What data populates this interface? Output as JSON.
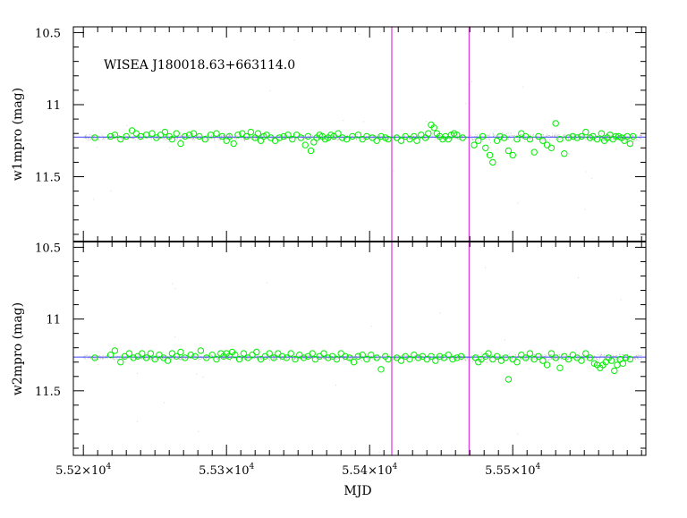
{
  "chart_data": {
    "type": "scatter",
    "annotation": "WISEA J180018.63+663114.0",
    "xlabel": "MJD",
    "x_ticks": [
      {
        "value": 55200,
        "label": "5.52×10"
      },
      {
        "value": 55300,
        "label": "5.53×10"
      },
      {
        "value": 55400,
        "label": "5.54×10"
      },
      {
        "value": 55500,
        "label": "5.55×10"
      }
    ],
    "x_tick_exponent": "4",
    "xlim": [
      55193,
      55593
    ],
    "vertical_lines_x": [
      55415.5,
      55469.5
    ],
    "colors": {
      "points": "#00ee00",
      "baseline": "#4444ff",
      "vlines": "#dd44dd",
      "dots": "#9a9a9a"
    },
    "panels": [
      {
        "ylabel": "w1mpro (mag)",
        "ylim": [
          11.95,
          10.46
        ],
        "y_ticks": [
          {
            "value": 10.5,
            "label": "10.5"
          },
          {
            "value": 11.0,
            "label": "11"
          },
          {
            "value": 11.5,
            "label": "11.5"
          }
        ],
        "baseline": 11.225,
        "points": [
          [
            55208,
            11.23
          ],
          [
            55219,
            11.22
          ],
          [
            55222,
            11.21
          ],
          [
            55226,
            11.24
          ],
          [
            55230,
            11.22
          ],
          [
            55234,
            11.18
          ],
          [
            55237,
            11.2
          ],
          [
            55240,
            11.22
          ],
          [
            55244,
            11.21
          ],
          [
            55248,
            11.2
          ],
          [
            55251,
            11.23
          ],
          [
            55254,
            11.21
          ],
          [
            55257,
            11.19
          ],
          [
            55260,
            11.22
          ],
          [
            55262,
            11.24
          ],
          [
            55265,
            11.2
          ],
          [
            55268,
            11.27
          ],
          [
            55271,
            11.22
          ],
          [
            55274,
            11.21
          ],
          [
            55277,
            11.2
          ],
          [
            55281,
            11.22
          ],
          [
            55285,
            11.24
          ],
          [
            55289,
            11.21
          ],
          [
            55293,
            11.2
          ],
          [
            55297,
            11.22
          ],
          [
            55300,
            11.25
          ],
          [
            55302,
            11.22
          ],
          [
            55305,
            11.27
          ],
          [
            55308,
            11.21
          ],
          [
            55311,
            11.2
          ],
          [
            55314,
            11.22
          ],
          [
            55317,
            11.19
          ],
          [
            55320,
            11.23
          ],
          [
            55322,
            11.2
          ],
          [
            55324,
            11.25
          ],
          [
            55326,
            11.22
          ],
          [
            55328,
            11.21
          ],
          [
            55331,
            11.23
          ],
          [
            55334,
            11.25
          ],
          [
            55337,
            11.23
          ],
          [
            55340,
            11.22
          ],
          [
            55343,
            11.21
          ],
          [
            55346,
            11.24
          ],
          [
            55349,
            11.21
          ],
          [
            55352,
            11.23
          ],
          [
            55355,
            11.28
          ],
          [
            55357,
            11.22
          ],
          [
            55359,
            11.32
          ],
          [
            55361,
            11.26
          ],
          [
            55363,
            11.23
          ],
          [
            55365,
            11.21
          ],
          [
            55367,
            11.22
          ],
          [
            55369,
            11.24
          ],
          [
            55371,
            11.23
          ],
          [
            55373,
            11.21
          ],
          [
            55375,
            11.22
          ],
          [
            55378,
            11.2
          ],
          [
            55381,
            11.23
          ],
          [
            55384,
            11.24
          ],
          [
            55388,
            11.22
          ],
          [
            55392,
            11.21
          ],
          [
            55395,
            11.24
          ],
          [
            55398,
            11.22
          ],
          [
            55402,
            11.23
          ],
          [
            55405,
            11.25
          ],
          [
            55408,
            11.22
          ],
          [
            55411,
            11.23
          ],
          [
            55413,
            11.24
          ],
          [
            55419,
            11.23
          ],
          [
            55422,
            11.25
          ],
          [
            55425,
            11.22
          ],
          [
            55428,
            11.24
          ],
          [
            55431,
            11.22
          ],
          [
            55433,
            11.25
          ],
          [
            55436,
            11.21
          ],
          [
            55439,
            11.23
          ],
          [
            55441,
            11.2
          ],
          [
            55443,
            11.14
          ],
          [
            55445,
            11.16
          ],
          [
            55447,
            11.2
          ],
          [
            55449,
            11.22
          ],
          [
            55451,
            11.24
          ],
          [
            55453,
            11.22
          ],
          [
            55455,
            11.24
          ],
          [
            55457,
            11.21
          ],
          [
            55459,
            11.2
          ],
          [
            55461,
            11.21
          ],
          [
            55465,
            11.23
          ],
          [
            55473,
            11.28
          ],
          [
            55476,
            11.25
          ],
          [
            55479,
            11.22
          ],
          [
            55481,
            11.3
          ],
          [
            55484,
            11.35
          ],
          [
            55486,
            11.4
          ],
          [
            55489,
            11.25
          ],
          [
            55491,
            11.22
          ],
          [
            55494,
            11.23
          ],
          [
            55497,
            11.32
          ],
          [
            55500,
            11.35
          ],
          [
            55503,
            11.24
          ],
          [
            55506,
            11.2
          ],
          [
            55509,
            11.22
          ],
          [
            55512,
            11.24
          ],
          [
            55515,
            11.33
          ],
          [
            55518,
            11.22
          ],
          [
            55521,
            11.25
          ],
          [
            55524,
            11.28
          ],
          [
            55527,
            11.3
          ],
          [
            55530,
            11.13
          ],
          [
            55533,
            11.24
          ],
          [
            55536,
            11.34
          ],
          [
            55539,
            11.23
          ],
          [
            55542,
            11.22
          ],
          [
            55545,
            11.23
          ],
          [
            55548,
            11.22
          ],
          [
            55551,
            11.19
          ],
          [
            55554,
            11.23
          ],
          [
            55556,
            11.22
          ],
          [
            55559,
            11.24
          ],
          [
            55562,
            11.2
          ],
          [
            55564,
            11.25
          ],
          [
            55566,
            11.23
          ],
          [
            55568,
            11.21
          ],
          [
            55570,
            11.24
          ],
          [
            55572,
            11.22
          ],
          [
            55574,
            11.22
          ],
          [
            55576,
            11.23
          ],
          [
            55578,
            11.25
          ],
          [
            55580,
            11.22
          ],
          [
            55582,
            11.27
          ],
          [
            55584,
            11.22
          ]
        ]
      },
      {
        "ylabel": "w2mpro (mag)",
        "ylim": [
          11.95,
          10.46
        ],
        "y_ticks": [
          {
            "value": 10.5,
            "label": "10.5"
          },
          {
            "value": 11.0,
            "label": "11"
          },
          {
            "value": 11.5,
            "label": "11.5"
          }
        ],
        "baseline": 11.265,
        "points": [
          [
            55208,
            11.27
          ],
          [
            55219,
            11.25
          ],
          [
            55222,
            11.22
          ],
          [
            55226,
            11.3
          ],
          [
            55229,
            11.26
          ],
          [
            55232,
            11.24
          ],
          [
            55235,
            11.27
          ],
          [
            55238,
            11.26
          ],
          [
            55241,
            11.24
          ],
          [
            55244,
            11.27
          ],
          [
            55247,
            11.24
          ],
          [
            55250,
            11.28
          ],
          [
            55253,
            11.25
          ],
          [
            55256,
            11.27
          ],
          [
            55259,
            11.29
          ],
          [
            55262,
            11.24
          ],
          [
            55265,
            11.26
          ],
          [
            55268,
            11.23
          ],
          [
            55271,
            11.27
          ],
          [
            55275,
            11.25
          ],
          [
            55278,
            11.26
          ],
          [
            55282,
            11.22
          ],
          [
            55286,
            11.27
          ],
          [
            55290,
            11.25
          ],
          [
            55293,
            11.28
          ],
          [
            55296,
            11.24
          ],
          [
            55298,
            11.26
          ],
          [
            55300,
            11.24
          ],
          [
            55302,
            11.26
          ],
          [
            55304,
            11.23
          ],
          [
            55306,
            11.25
          ],
          [
            55309,
            11.28
          ],
          [
            55312,
            11.24
          ],
          [
            55315,
            11.27
          ],
          [
            55318,
            11.25
          ],
          [
            55321,
            11.23
          ],
          [
            55324,
            11.28
          ],
          [
            55327,
            11.26
          ],
          [
            55330,
            11.24
          ],
          [
            55333,
            11.27
          ],
          [
            55336,
            11.24
          ],
          [
            55339,
            11.26
          ],
          [
            55342,
            11.27
          ],
          [
            55345,
            11.24
          ],
          [
            55348,
            11.28
          ],
          [
            55351,
            11.25
          ],
          [
            55354,
            11.27
          ],
          [
            55357,
            11.26
          ],
          [
            55360,
            11.24
          ],
          [
            55362,
            11.28
          ],
          [
            55365,
            11.26
          ],
          [
            55368,
            11.24
          ],
          [
            55371,
            11.27
          ],
          [
            55374,
            11.26
          ],
          [
            55377,
            11.28
          ],
          [
            55380,
            11.24
          ],
          [
            55383,
            11.26
          ],
          [
            55386,
            11.27
          ],
          [
            55389,
            11.3
          ],
          [
            55392,
            11.26
          ],
          [
            55395,
            11.25
          ],
          [
            55398,
            11.28
          ],
          [
            55401,
            11.25
          ],
          [
            55405,
            11.27
          ],
          [
            55408,
            11.35
          ],
          [
            55411,
            11.26
          ],
          [
            55413,
            11.28
          ],
          [
            55419,
            11.27
          ],
          [
            55422,
            11.29
          ],
          [
            55425,
            11.26
          ],
          [
            55428,
            11.28
          ],
          [
            55431,
            11.25
          ],
          [
            55434,
            11.27
          ],
          [
            55437,
            11.26
          ],
          [
            55440,
            11.28
          ],
          [
            55443,
            11.26
          ],
          [
            55446,
            11.29
          ],
          [
            55449,
            11.26
          ],
          [
            55452,
            11.27
          ],
          [
            55455,
            11.25
          ],
          [
            55458,
            11.28
          ],
          [
            55461,
            11.27
          ],
          [
            55464,
            11.26
          ],
          [
            55474,
            11.27
          ],
          [
            55476,
            11.3
          ],
          [
            55478,
            11.28
          ],
          [
            55481,
            11.26
          ],
          [
            55483,
            11.24
          ],
          [
            55486,
            11.28
          ],
          [
            55489,
            11.26
          ],
          [
            55492,
            11.29
          ],
          [
            55495,
            11.27
          ],
          [
            55497,
            11.42
          ],
          [
            55500,
            11.28
          ],
          [
            55503,
            11.3
          ],
          [
            55506,
            11.25
          ],
          [
            55509,
            11.27
          ],
          [
            55512,
            11.24
          ],
          [
            55515,
            11.28
          ],
          [
            55518,
            11.26
          ],
          [
            55521,
            11.29
          ],
          [
            55524,
            11.32
          ],
          [
            55527,
            11.24
          ],
          [
            55530,
            11.27
          ],
          [
            55533,
            11.34
          ],
          [
            55536,
            11.26
          ],
          [
            55539,
            11.28
          ],
          [
            55542,
            11.25
          ],
          [
            55545,
            11.27
          ],
          [
            55548,
            11.29
          ],
          [
            55551,
            11.24
          ],
          [
            55554,
            11.27
          ],
          [
            55557,
            11.31
          ],
          [
            55559,
            11.32
          ],
          [
            55561,
            11.34
          ],
          [
            55563,
            11.32
          ],
          [
            55565,
            11.3
          ],
          [
            55567,
            11.27
          ],
          [
            55569,
            11.29
          ],
          [
            55571,
            11.36
          ],
          [
            55573,
            11.32
          ],
          [
            55575,
            11.28
          ],
          [
            55577,
            11.31
          ],
          [
            55579,
            11.27
          ],
          [
            55582,
            11.28
          ]
        ]
      }
    ]
  }
}
